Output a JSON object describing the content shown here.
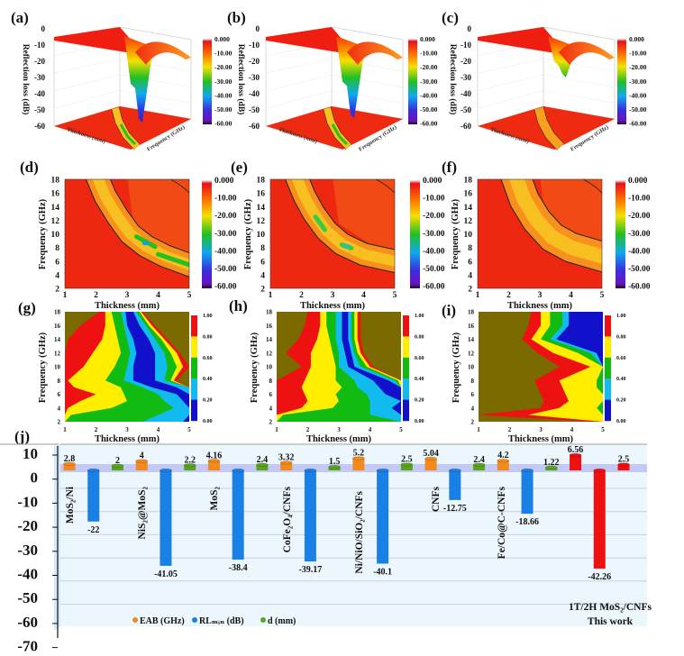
{
  "panel_labels": [
    "(a)",
    "(b)",
    "(c)",
    "(d)",
    "(e)",
    "(f)",
    "(g)",
    "(h)",
    "(i)",
    "(j)"
  ],
  "chart_data": [
    {
      "panel": "(a)",
      "type": "surface3d",
      "zlabel": "Reflection loss (dB)",
      "xlabel": "Thickness (mm)",
      "ylabel": "Frequency (GHz)",
      "z_ticks": [
        "0",
        "-10",
        "-20",
        "-30",
        "-40",
        "-50",
        "-60"
      ],
      "colorbar_ticks": [
        "0.000",
        "-10.00",
        "-20.00",
        "-30.00",
        "-40.00",
        "-50.00",
        "-60.00"
      ],
      "approx_min_rl": -58
    },
    {
      "panel": "(b)",
      "type": "surface3d",
      "zlabel": "Reflection loss (dB)",
      "xlabel": "Thickness (mm)",
      "ylabel": "Frequency (GHz)",
      "z_ticks": [
        "0",
        "-10",
        "-20",
        "-30",
        "-40",
        "-50",
        "-60"
      ],
      "colorbar_ticks": [
        "0.000",
        "-10.00",
        "-20.00",
        "-30.00",
        "-40.00",
        "-50.00",
        "-60.00"
      ],
      "approx_min_rl": -55
    },
    {
      "panel": "(c)",
      "type": "surface3d",
      "zlabel": "Reflection loss (dB)",
      "xlabel": "Thickness (mm)",
      "ylabel": "Frequency (GHz)",
      "z_ticks": [
        "0",
        "-10",
        "-20",
        "-30",
        "-40",
        "-50",
        "-60"
      ],
      "colorbar_ticks": [
        "0.000",
        "-10.00",
        "-20.00",
        "-30.00",
        "-40.00",
        "-50.00",
        "-60.00"
      ],
      "approx_min_rl": -30
    },
    {
      "panel": "(d)",
      "type": "heatmap",
      "xlabel": "Thickness (mm)",
      "ylabel": "Frequency (GHz)",
      "x_ticks": [
        "1",
        "2",
        "3",
        "4",
        "5"
      ],
      "y_ticks": [
        "2",
        "4",
        "6",
        "8",
        "10",
        "12",
        "14",
        "16",
        "18"
      ],
      "xlim": [
        1,
        5
      ],
      "ylim": [
        2,
        18
      ],
      "colorbar_ticks": [
        "0.000",
        "-10.00",
        "-20.00",
        "-30.00",
        "-40.00",
        "-50.00",
        "-60.00"
      ]
    },
    {
      "panel": "(e)",
      "type": "heatmap",
      "xlabel": "Thickness (mm)",
      "ylabel": "Frequency (GHz)",
      "x_ticks": [
        "1",
        "2",
        "3",
        "4",
        "5"
      ],
      "y_ticks": [
        "2",
        "4",
        "6",
        "8",
        "10",
        "12",
        "14",
        "16",
        "18"
      ],
      "xlim": [
        1,
        5
      ],
      "ylim": [
        2,
        18
      ],
      "colorbar_ticks": [
        "0.000",
        "-10.00",
        "-20.00",
        "-30.00",
        "-40.00",
        "-50.00",
        "-60.00"
      ]
    },
    {
      "panel": "(f)",
      "type": "heatmap",
      "xlabel": "Thickness (mm)",
      "ylabel": "Frequency (GHz)",
      "x_ticks": [
        "1",
        "2",
        "3",
        "4",
        "5"
      ],
      "y_ticks": [
        "2",
        "4",
        "6",
        "8",
        "10",
        "12",
        "14",
        "16",
        "18"
      ],
      "xlim": [
        1,
        5
      ],
      "ylim": [
        2,
        18
      ],
      "colorbar_ticks": [
        "0.000",
        "-10.00",
        "-20.00",
        "-30.00",
        "-40.00",
        "-50.00",
        "-60.00"
      ]
    },
    {
      "panel": "(g)",
      "type": "heatmap",
      "xlabel": "Thickness (mm)",
      "ylabel": "Frequency (GHz)",
      "x_ticks": [
        "1",
        "2",
        "3",
        "4",
        "5"
      ],
      "y_ticks": [
        "2",
        "4",
        "6",
        "8",
        "10",
        "12",
        "14",
        "16",
        "18"
      ],
      "xlim": [
        1,
        5
      ],
      "ylim": [
        2,
        18
      ],
      "colorbar_ticks": [
        "1.00",
        "0.80",
        "0.60",
        "0.40",
        "0.20",
        "0.00"
      ],
      "colorbar_colors": [
        "#ee1111",
        "#ffee00",
        "#11bb11",
        "#11bbee",
        "#1111cc"
      ],
      "background_color": "#7a6a00"
    },
    {
      "panel": "(h)",
      "type": "heatmap",
      "xlabel": "Thickness (mm)",
      "ylabel": "Frequency (GHz)",
      "x_ticks": [
        "1",
        "2",
        "3",
        "4",
        "5"
      ],
      "y_ticks": [
        "2",
        "4",
        "6",
        "8",
        "10",
        "12",
        "14",
        "16",
        "18"
      ],
      "xlim": [
        1,
        5
      ],
      "ylim": [
        2,
        18
      ],
      "colorbar_ticks": [
        "1.00",
        "0.80",
        "0.60",
        "0.40",
        "0.20",
        "0.00"
      ],
      "colorbar_colors": [
        "#ee1111",
        "#ffee00",
        "#11bb11",
        "#11bbee",
        "#1111cc"
      ],
      "background_color": "#7a6a00"
    },
    {
      "panel": "(i)",
      "type": "heatmap",
      "xlabel": "Thickness (mm)",
      "ylabel": "Frequency (GHz)",
      "x_ticks": [
        "1",
        "2",
        "3",
        "4",
        "5"
      ],
      "y_ticks": [
        "2",
        "4",
        "6",
        "8",
        "10",
        "12",
        "14",
        "16",
        "18"
      ],
      "xlim": [
        1,
        5
      ],
      "ylim": [
        2,
        18
      ],
      "colorbar_ticks": [
        "1.00",
        "0.80",
        "0.60",
        "0.40",
        "0.20",
        "0.00"
      ],
      "colorbar_colors": [
        "#ee1111",
        "#ffee00",
        "#11bb11",
        "#11bbee",
        "#1111cc"
      ],
      "background_color": "#7a6a00"
    },
    {
      "panel": "(j)",
      "type": "bar",
      "categories": [
        "MoS₂/Ni",
        "NiS₂@MoS₂",
        "MoS₂",
        "CoFe₂O₄/CNFs",
        "Ni/NiO/SiO₂/CNFs",
        "CNFs",
        "Fe/Co@C-CNFs",
        "1T/2H MoS₂/CNFs"
      ],
      "highlight_note": "This work",
      "series": [
        {
          "name": "EAB (GHz)",
          "color": "#f28a1e",
          "values": [
            2.8,
            4,
            4.16,
            3.32,
            5.2,
            5.04,
            4.2,
            6.56
          ]
        },
        {
          "name": "RLₘᵢₙ (dB)",
          "color": "#1a80e6",
          "values": [
            -22,
            -41.05,
            -38.4,
            -39.17,
            -40.1,
            -12.75,
            -18.66,
            -42.26
          ]
        },
        {
          "name": "d (mm)",
          "color": "#5aa51e",
          "values": [
            2,
            2.2,
            2.4,
            1.5,
            2.5,
            2.4,
            1.22,
            2.5
          ]
        }
      ],
      "highlight_color": "#ee1111",
      "y_ticks": [
        "10",
        "0",
        "-10",
        "-20",
        "-30",
        "-40",
        "-50",
        "-60",
        "-70"
      ],
      "ylim": [
        -70,
        10
      ],
      "legend": "bottom-center",
      "grid": true
    }
  ]
}
